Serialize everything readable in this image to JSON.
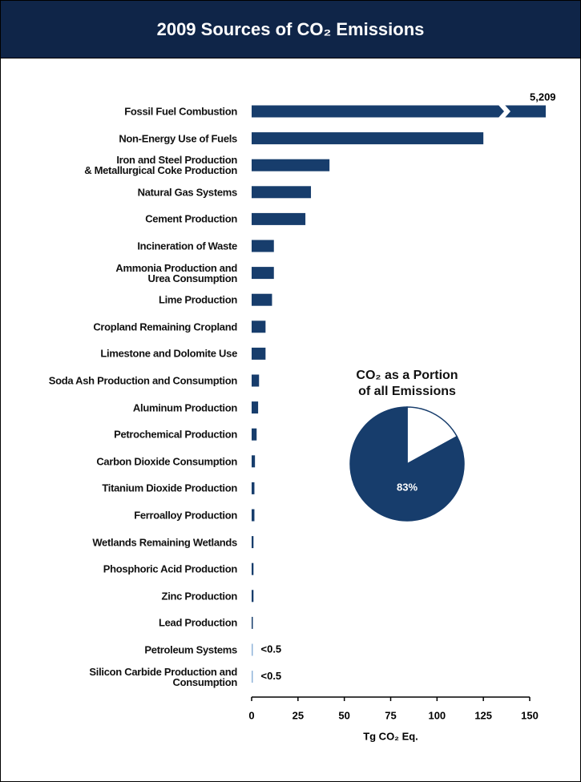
{
  "chart_data": [
    {
      "type": "bar",
      "orientation": "horizontal",
      "title": "2009 Sources of CO₂ Emissions",
      "categories": [
        "Fossil Fuel Combustion",
        "Non-Energy Use of Fuels",
        "Iron and Steel Production\n& Metallurgical Coke Production",
        "Natural Gas Systems",
        "Cement Production",
        "Incineration of Waste",
        "Ammonia Production and\nUrea Consumption",
        "Lime Production",
        "Cropland Remaining Cropland",
        "Limestone and Dolomite Use",
        "Soda Ash Production and Consumption",
        "Aluminum Production",
        "Petrochemical Production",
        "Carbon Dioxide Consumption",
        "Titanium Dioxide Production",
        "Ferroalloy Production",
        "Wetlands Remaining Wetlands",
        "Phosphoric Acid Production",
        "Zinc Production",
        "Lead Production",
        "Petroleum Systems",
        "Silicon Carbide Production and\nConsumption"
      ],
      "values": [
        5209,
        125,
        42,
        32,
        29,
        12,
        12,
        11,
        7.5,
        7.5,
        4,
        3.5,
        2.7,
        1.8,
        1.5,
        1.5,
        1,
        1,
        1,
        0.5,
        0.4,
        0.4
      ],
      "value_labels": [
        "5,209",
        null,
        null,
        null,
        null,
        null,
        null,
        null,
        null,
        null,
        null,
        null,
        null,
        null,
        null,
        null,
        null,
        null,
        null,
        null,
        "<0.5",
        "<0.5"
      ],
      "colors": [
        "#173d6c",
        "#173d6c",
        "#173d6c",
        "#173d6c",
        "#173d6c",
        "#173d6c",
        "#173d6c",
        "#173d6c",
        "#173d6c",
        "#173d6c",
        "#173d6c",
        "#173d6c",
        "#173d6c",
        "#173d6c",
        "#173d6c",
        "#173d6c",
        "#173d6c",
        "#173d6c",
        "#173d6c",
        "#173d6c",
        "#8fb3d9",
        "#8fb3d9"
      ],
      "xlim": [
        0,
        150
      ],
      "xticks": [
        0,
        25,
        50,
        75,
        100,
        125,
        150
      ],
      "x_label": "Tg CO₂ Eq."
    },
    {
      "type": "pie",
      "title": "CO₂ as a Portion\nof all Emissions",
      "values": [
        83,
        17
      ],
      "value_labels": [
        "83%",
        null
      ],
      "colors": [
        "#173d6c",
        "#ffffff"
      ]
    }
  ]
}
